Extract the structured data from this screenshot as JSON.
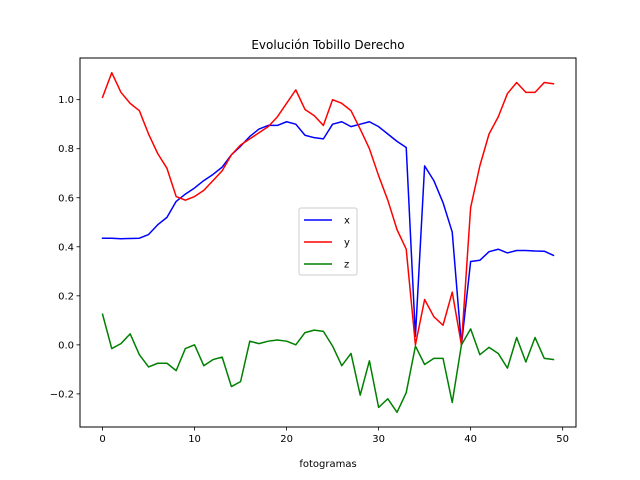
{
  "chart_data": {
    "type": "line",
    "title": "Evolución Tobillo Derecho",
    "xlabel": "fotogramas",
    "ylabel": "",
    "xlim": [
      -2.45,
      51.45
    ],
    "ylim": [
      -0.335,
      1.17
    ],
    "xticks": [
      0,
      10,
      20,
      30,
      40,
      50
    ],
    "yticks": [
      -0.2,
      0.0,
      0.2,
      0.4,
      0.6,
      0.8,
      1.0
    ],
    "ytick_labels": [
      "−0.2",
      "0.0",
      "0.2",
      "0.4",
      "0.6",
      "0.8",
      "1.0"
    ],
    "grid": false,
    "legend_position": "center",
    "x": [
      0,
      1,
      2,
      3,
      4,
      5,
      6,
      7,
      8,
      9,
      10,
      11,
      12,
      13,
      14,
      15,
      16,
      17,
      18,
      19,
      20,
      21,
      22,
      23,
      24,
      25,
      26,
      27,
      28,
      29,
      30,
      31,
      32,
      33,
      34,
      35,
      36,
      37,
      38,
      39,
      40,
      41,
      42,
      43,
      44,
      45,
      46,
      47,
      48,
      49
    ],
    "series": [
      {
        "name": "x",
        "color": "#0000ff",
        "values": [
          0.435,
          0.435,
          0.433,
          0.434,
          0.435,
          0.45,
          0.49,
          0.52,
          0.585,
          0.615,
          0.64,
          0.67,
          0.695,
          0.725,
          0.775,
          0.81,
          0.85,
          0.88,
          0.895,
          0.895,
          0.91,
          0.9,
          0.855,
          0.845,
          0.84,
          0.9,
          0.91,
          0.89,
          0.9,
          0.91,
          0.89,
          0.86,
          0.83,
          0.805,
          0.035,
          0.73,
          0.67,
          0.58,
          0.46,
          0.0,
          0.34,
          0.345,
          0.38,
          0.39,
          0.375,
          0.385,
          0.385,
          0.383,
          0.382,
          0.365
        ]
      },
      {
        "name": "y",
        "color": "#ff0000",
        "values": [
          1.01,
          1.11,
          1.03,
          0.985,
          0.955,
          0.86,
          0.78,
          0.72,
          0.605,
          0.59,
          0.605,
          0.63,
          0.67,
          0.71,
          0.775,
          0.815,
          0.84,
          0.865,
          0.89,
          0.93,
          0.985,
          1.04,
          0.96,
          0.935,
          0.895,
          1.0,
          0.985,
          0.955,
          0.88,
          0.8,
          0.69,
          0.59,
          0.47,
          0.39,
          0.0,
          0.185,
          0.115,
          0.08,
          0.215,
          0.0,
          0.56,
          0.73,
          0.86,
          0.93,
          1.025,
          1.07,
          1.03,
          1.03,
          1.07,
          1.065
        ]
      },
      {
        "name": "z",
        "color": "#008000",
        "values": [
          0.125,
          -0.015,
          0.005,
          0.045,
          -0.04,
          -0.09,
          -0.075,
          -0.075,
          -0.105,
          -0.015,
          0.0,
          -0.085,
          -0.06,
          -0.05,
          -0.17,
          -0.15,
          0.015,
          0.005,
          0.015,
          0.02,
          0.015,
          0.0,
          0.05,
          0.06,
          0.055,
          -0.005,
          -0.085,
          -0.035,
          -0.205,
          -0.065,
          -0.255,
          -0.22,
          -0.275,
          -0.195,
          -0.005,
          -0.08,
          -0.055,
          -0.055,
          -0.235,
          0.0,
          0.065,
          -0.04,
          -0.01,
          -0.035,
          -0.095,
          0.03,
          -0.07,
          0.03,
          -0.055,
          -0.06
        ]
      }
    ]
  }
}
